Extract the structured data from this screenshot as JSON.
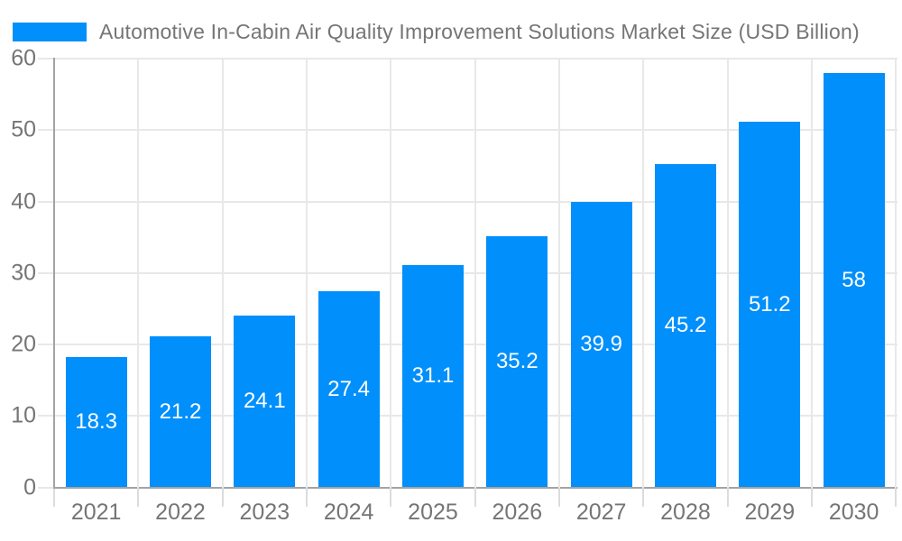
{
  "chart_data": {
    "type": "bar",
    "title": "Automotive In-Cabin Air Quality Improvement Solutions Market Size (USD Billion)",
    "categories": [
      "2021",
      "2022",
      "2023",
      "2024",
      "2025",
      "2026",
      "2027",
      "2028",
      "2029",
      "2030"
    ],
    "values": [
      18.3,
      21.2,
      24.1,
      27.4,
      31.1,
      35.2,
      39.9,
      45.2,
      51.2,
      58
    ],
    "xlabel": "",
    "ylabel": "",
    "ylim": [
      0,
      60
    ],
    "yticks": [
      0,
      10,
      20,
      30,
      40,
      50,
      60
    ],
    "grid": true,
    "legend_position": "top-left",
    "value_labels_inside_bars": true,
    "colors": {
      "bar": "#008FFB",
      "grid": "#e8e8e8",
      "axis": "#a3a3a3",
      "outer_tick": "#dcdcdc",
      "label_text": "#757575",
      "value_text": "#ffffff",
      "background": "#ffffff"
    }
  }
}
